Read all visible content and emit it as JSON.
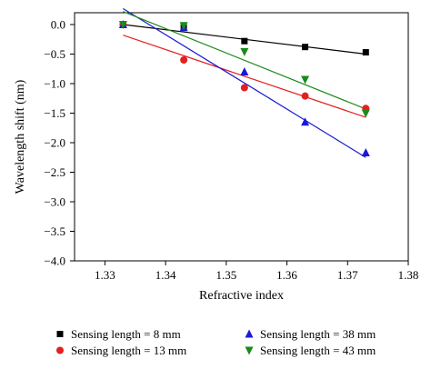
{
  "chart_data": {
    "type": "scatter",
    "xlabel": "Refractive index",
    "ylabel": "Wavelength shift (nm)",
    "xlim": [
      1.325,
      1.38
    ],
    "ylim": [
      -4.0,
      0.2
    ],
    "x_ticks": [
      "1.33",
      "1.34",
      "1.35",
      "1.36",
      "1.37",
      "1.38"
    ],
    "y_ticks": [
      "0.0",
      "−0.5",
      "−1.0",
      "−1.5",
      "−2.0",
      "−2.5",
      "−3.0",
      "−3.5",
      "−4.0"
    ],
    "legend_position": "bottom",
    "series": [
      {
        "name": "Sensing length = 8 mm",
        "color": "#000000",
        "marker": "square",
        "x": [
          1.333,
          1.343,
          1.353,
          1.363,
          1.373
        ],
        "y": [
          0.0,
          -0.05,
          -0.28,
          -0.38,
          -0.47
        ],
        "fit": [
          [
            1.333,
            0.0
          ],
          [
            1.373,
            -0.5
          ]
        ]
      },
      {
        "name": "Sensing length = 13 mm",
        "color": "#e32020",
        "marker": "circle",
        "x": [
          1.333,
          1.343,
          1.353,
          1.363,
          1.373
        ],
        "y": [
          0.0,
          -0.6,
          -1.07,
          -1.21,
          -1.42
        ],
        "fit": [
          [
            1.333,
            -0.18
          ],
          [
            1.373,
            -1.57
          ]
        ]
      },
      {
        "name": "Sensing length = 38 mm",
        "color": "#1a1ad6",
        "marker": "triangle-up",
        "x": [
          1.333,
          1.343,
          1.353,
          1.363,
          1.373
        ],
        "y": [
          0.0,
          -0.05,
          -0.8,
          -1.65,
          -2.17
        ],
        "fit": [
          [
            1.333,
            0.27
          ],
          [
            1.373,
            -2.25
          ]
        ]
      },
      {
        "name": "Sensing length = 43 mm",
        "color": "#1a8a1a",
        "marker": "triangle-down",
        "x": [
          1.333,
          1.343,
          1.353,
          1.363,
          1.373
        ],
        "y": [
          0.0,
          -0.02,
          -0.46,
          -0.93,
          -1.5
        ],
        "fit": [
          [
            1.333,
            0.22
          ],
          [
            1.373,
            -1.43
          ]
        ]
      }
    ]
  }
}
